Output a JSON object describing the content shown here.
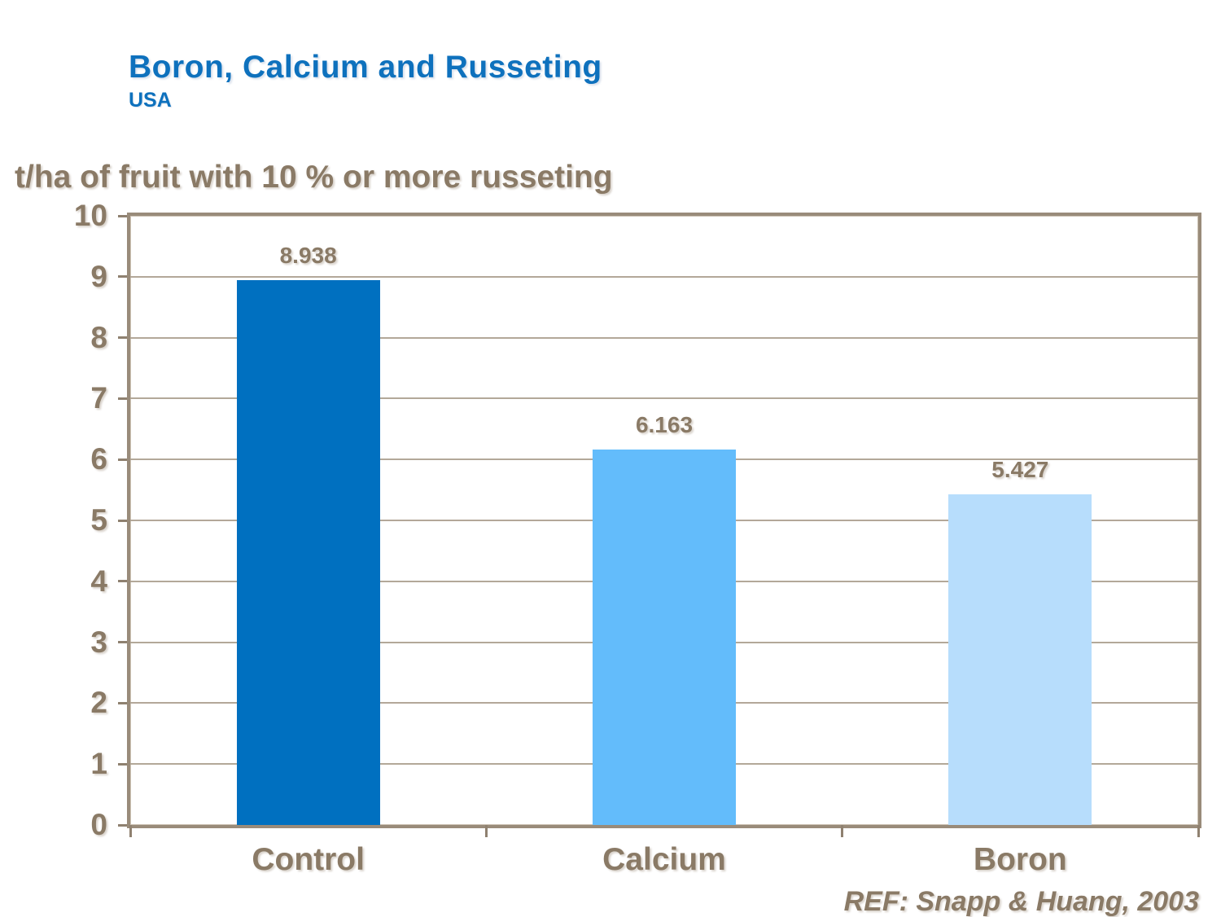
{
  "header": {
    "title": "Boron, Calcium and Russeting",
    "subtitle": "USA"
  },
  "chart_data": {
    "type": "bar",
    "categories": [
      "Control",
      "Calcium",
      "Boron"
    ],
    "values": [
      8.938,
      6.163,
      5.427
    ],
    "value_labels": [
      "8.938",
      "6.163",
      "5.427"
    ],
    "title": "Boron, Calcium and Russeting",
    "subtitle": "USA",
    "ylabel": "t/ha of fruit with 10 % or more russeting",
    "xlabel": "",
    "ylim": [
      0,
      10
    ],
    "yticks": [
      0,
      1,
      2,
      3,
      4,
      5,
      6,
      7,
      8,
      9,
      10
    ],
    "grid": true,
    "legend": false,
    "bar_colors": [
      "#0070C0",
      "#63BCFB",
      "#B7DDFC"
    ]
  },
  "footer": {
    "reference": "REF: Snapp & Huang, 2003"
  },
  "colors": {
    "title_blue": "#0E71BD",
    "text_brown": "#8A7A66",
    "gridline": "#B3A899",
    "axis_border": "#998B7A",
    "axis_border_highlight": "#CDC3B5",
    "tick": "#8F8170"
  }
}
